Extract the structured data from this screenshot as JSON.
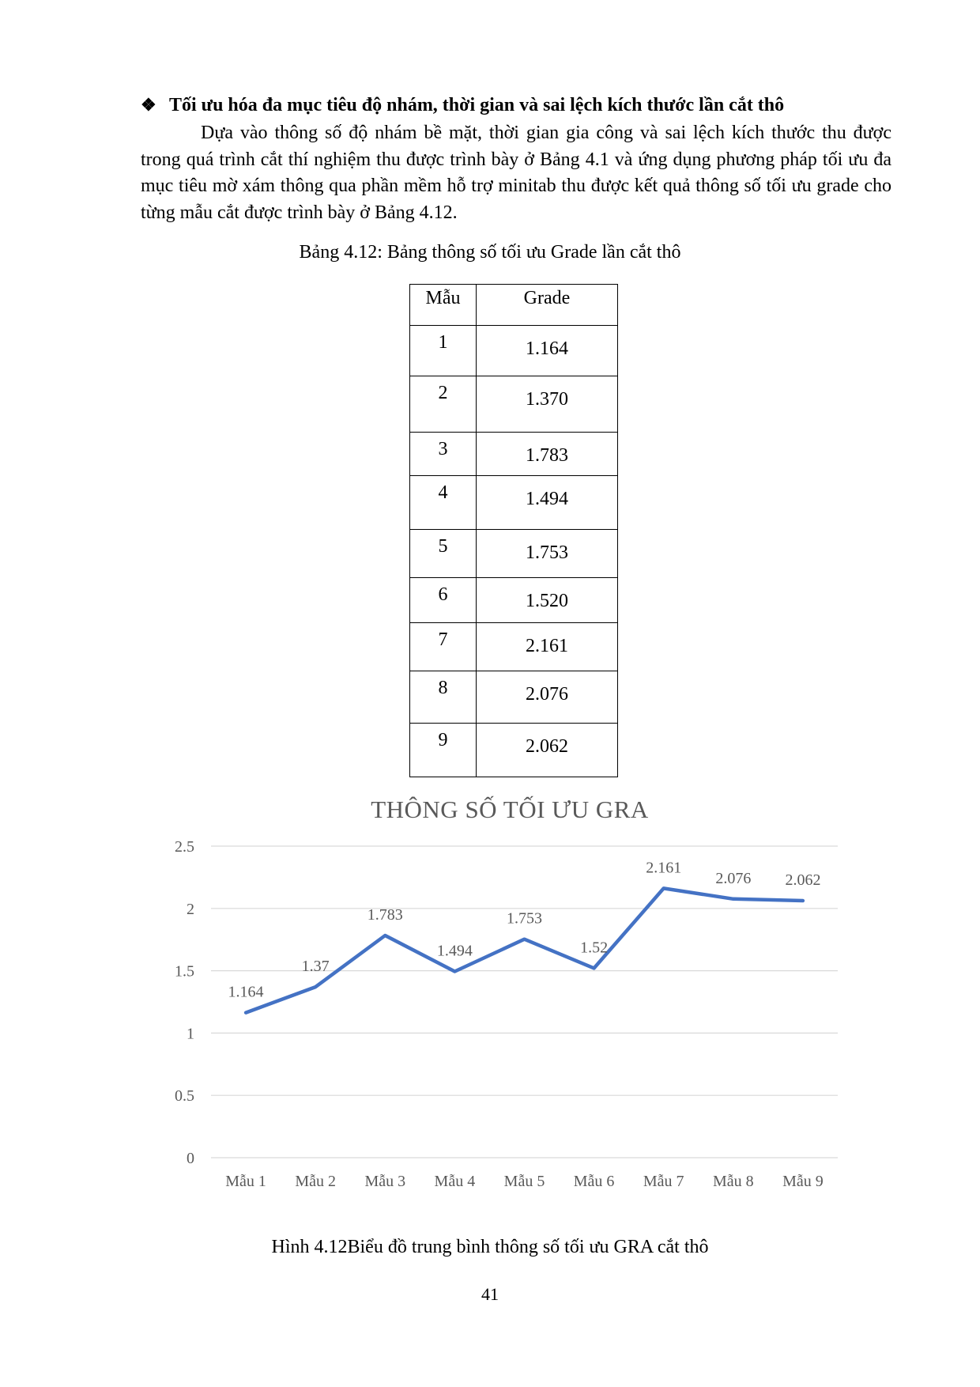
{
  "heading": {
    "bullet": "❖",
    "text": "Tối ưu hóa đa mục tiêu độ nhám, thời gian và sai lệch kích thước lần cắt thô"
  },
  "paragraph": "Dựa vào thông số độ nhám bề mặt, thời gian gia công và sai lệch kích thước thu được trong quá trình cắt thí nghiệm thu được trình bày ở Bảng 4.1 và ứng dụng phương pháp tối ưu đa mục tiêu mờ xám thông qua phần mềm hỗ trợ minitab thu được kết quả thông số tối ưu grade cho từng mẫu cắt được trình bày ở Bảng 4.12.",
  "table": {
    "caption": "Bảng 4.12: Bảng thông số tối ưu Grade lần cắt thô",
    "headers": [
      "Mẫu",
      "Grade"
    ],
    "rows": [
      [
        "1",
        "1.164"
      ],
      [
        "2",
        "1.370"
      ],
      [
        "3",
        "1.783"
      ],
      [
        "4",
        "1.494"
      ],
      [
        "5",
        "1.753"
      ],
      [
        "6",
        "1.520"
      ],
      [
        "7",
        "2.161"
      ],
      [
        "8",
        "2.076"
      ],
      [
        "9",
        "2.062"
      ]
    ]
  },
  "chart_data": {
    "type": "line",
    "title": "THÔNG SỐ TỐI ƯU GRA",
    "categories": [
      "Mẫu 1",
      "Mẫu 2",
      "Mẫu 3",
      "Mẫu 4",
      "Mẫu 5",
      "Mẫu 6",
      "Mẫu 7",
      "Mẫu 8",
      "Mẫu 9"
    ],
    "series": [
      {
        "values": [
          1.164,
          1.37,
          1.783,
          1.494,
          1.753,
          1.52,
          2.161,
          2.076,
          2.062
        ],
        "labels": [
          "1.164",
          "1.37",
          "1.783",
          "1.494",
          "1.753",
          "1.52",
          "2.161",
          "2.076",
          "2.062"
        ]
      }
    ],
    "yticks": [
      "0",
      "0.5",
      "1",
      "1.5",
      "2",
      "2.5"
    ],
    "ylim": [
      0,
      2.5
    ],
    "grid": true,
    "legend": "none",
    "line_color": "#4472C4",
    "grid_color": "#D9D9D9",
    "text_color": "#595959"
  },
  "figure_caption": "Hình 4.12Biểu đồ trung bình thông số tối ưu GRA cắt thô",
  "page_number": "41"
}
